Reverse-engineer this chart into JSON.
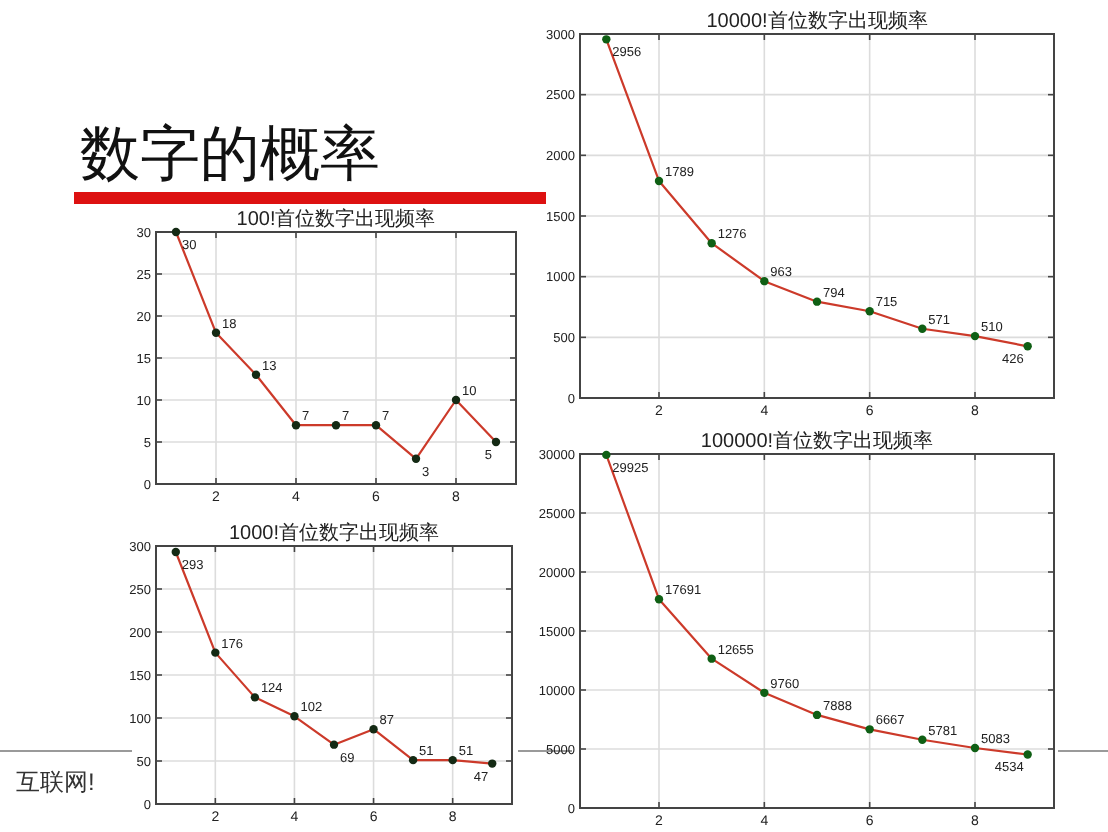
{
  "chart_data": [
    {
      "type": "other",
      "title": "数字的概率",
      "annotations": [
        "互联网!"
      ]
    },
    {
      "type": "line",
      "title": "100!首位数字出现频率",
      "x": [
        1,
        2,
        3,
        4,
        5,
        6,
        7,
        8,
        9
      ],
      "xlim": [
        0.5,
        9.5
      ],
      "xticks": [
        2,
        4,
        6,
        8
      ],
      "ylim": [
        0,
        30
      ],
      "yticks": [
        0,
        5,
        10,
        15,
        20,
        25,
        30
      ],
      "grid": true,
      "marker": "circle",
      "data_labels": true,
      "series": [
        {
          "color": "#cc3a2a",
          "colors": [
            "#142a14",
            "#142a14",
            "#142a14",
            "#142a14",
            "#142a14",
            "#142a14",
            "#142a14",
            "#142a14",
            "#142a14"
          ],
          "values": [
            30,
            18,
            13,
            7,
            7,
            7,
            3,
            10,
            5
          ]
        }
      ]
    },
    {
      "type": "line",
      "title": "1000!首位数字出现频率",
      "x": [
        1,
        2,
        3,
        4,
        5,
        6,
        7,
        8,
        9
      ],
      "xlim": [
        0.5,
        9.5
      ],
      "xticks": [
        2,
        4,
        6,
        8
      ],
      "ylim": [
        0,
        300
      ],
      "yticks": [
        0,
        50,
        100,
        150,
        200,
        250,
        300
      ],
      "grid": true,
      "marker": "circle",
      "data_labels": true,
      "series": [
        {
          "color": "#cc3a2a",
          "colors": [
            "#142a14",
            "#142a14",
            "#142a14",
            "#142a14",
            "#142a14",
            "#142a14",
            "#142a14",
            "#142a14",
            "#142a14"
          ],
          "values": [
            293,
            176,
            124,
            102,
            69,
            87,
            51,
            51,
            47
          ]
        }
      ]
    },
    {
      "type": "line",
      "title": "10000!首位数字出现频率",
      "x": [
        1,
        2,
        3,
        4,
        5,
        6,
        7,
        8,
        9
      ],
      "xlim": [
        0.5,
        9.5
      ],
      "xticks": [
        2,
        4,
        6,
        8
      ],
      "ylim": [
        0,
        3000
      ],
      "yticks": [
        0,
        500,
        1000,
        1500,
        2000,
        2500,
        3000
      ],
      "grid": true,
      "marker": "circle",
      "data_labels": true,
      "series": [
        {
          "color": "#cc3a2a",
          "colors": [
            "#0f5f14",
            "#0f5f14",
            "#0f5f14",
            "#0f5f14",
            "#0f5f14",
            "#0f5f14",
            "#0f5f14",
            "#0f5f14",
            "#0f5f14"
          ],
          "values": [
            2956,
            1789,
            1276,
            963,
            794,
            715,
            571,
            510,
            426
          ]
        }
      ]
    },
    {
      "type": "line",
      "title": "100000!首位数字出现频率",
      "x": [
        1,
        2,
        3,
        4,
        5,
        6,
        7,
        8,
        9
      ],
      "xlim": [
        0.5,
        9.5
      ],
      "xticks": [
        2,
        4,
        6,
        8
      ],
      "ylim": [
        0,
        30000
      ],
      "yticks": [
        0,
        5000,
        10000,
        15000,
        20000,
        25000,
        30000
      ],
      "grid": true,
      "marker": "circle",
      "data_labels": true,
      "series": [
        {
          "color": "#cc3a2a",
          "colors": [
            "#0f5f14",
            "#0f5f14",
            "#0f5f14",
            "#0f5f14",
            "#0f5f14",
            "#0f5f14",
            "#0f5f14",
            "#0f5f14",
            "#0f5f14"
          ],
          "values": [
            29925,
            17691,
            12655,
            9760,
            7888,
            6667,
            5781,
            5083,
            4534
          ]
        }
      ]
    }
  ]
}
